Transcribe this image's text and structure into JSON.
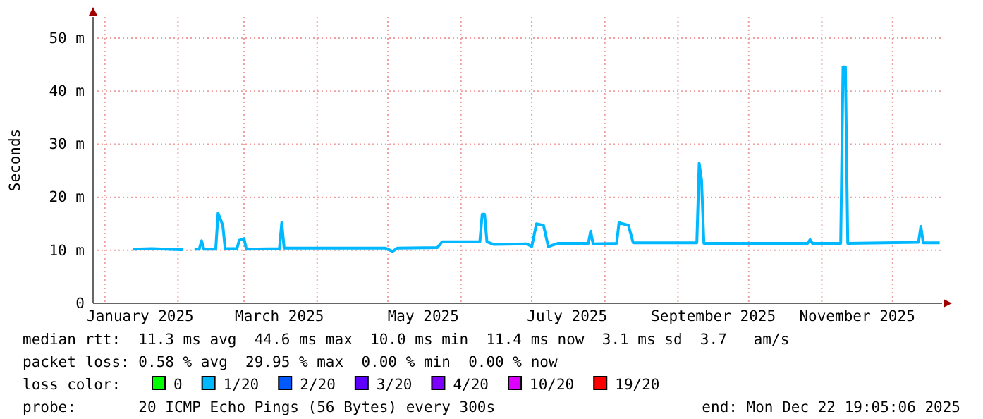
{
  "chart_data": {
    "type": "line",
    "ylabel": "Seconds",
    "xlim": [
      "2024-12-27",
      "2025-12-22"
    ],
    "xticks": [
      {
        "value": "2025-01-01",
        "label": null
      },
      {
        "value": "2025-01-16",
        "label": "January 2025"
      },
      {
        "value": "2025-02-01",
        "label": null
      },
      {
        "value": "2025-03-01",
        "label": null
      },
      {
        "value": "2025-03-16",
        "label": "March 2025"
      },
      {
        "value": "2025-04-01",
        "label": null
      },
      {
        "value": "2025-05-01",
        "label": null
      },
      {
        "value": "2025-05-16",
        "label": "May 2025"
      },
      {
        "value": "2025-06-01",
        "label": null
      },
      {
        "value": "2025-07-01",
        "label": null
      },
      {
        "value": "2025-07-16",
        "label": "July 2025"
      },
      {
        "value": "2025-08-01",
        "label": null
      },
      {
        "value": "2025-09-01",
        "label": null
      },
      {
        "value": "2025-09-16",
        "label": "September 2025"
      },
      {
        "value": "2025-10-01",
        "label": null
      },
      {
        "value": "2025-11-01",
        "label": null
      },
      {
        "value": "2025-11-16",
        "label": "November 2025"
      },
      {
        "value": "2025-12-01",
        "label": null
      }
    ],
    "ylim": [
      0,
      54
    ],
    "yticks": [
      0,
      {
        "value": 10,
        "label": "10 m"
      },
      {
        "value": 20,
        "label": "20 m"
      },
      {
        "value": 30,
        "label": "30 m"
      },
      {
        "value": 40,
        "label": "40 m"
      },
      {
        "value": 50,
        "label": "50 m"
      }
    ],
    "grid": true,
    "legend": "bottom",
    "marker": "none",
    "line_style": "solid",
    "series": [
      {
        "name": "0",
        "color": "#00ff00"
      },
      {
        "name": "1/20",
        "color": "#00b8ff",
        "x": [
          "2025-01-13",
          "2025-01-21",
          "2025-02-03",
          "2025-02-06",
          "2025-02-08",
          "2025-02-10",
          "2025-02-11",
          "2025-02-12",
          "2025-02-17",
          "2025-02-18",
          "2025-02-20",
          "2025-02-21",
          "2025-02-26",
          "2025-02-27",
          "2025-03-01",
          "2025-03-02",
          "2025-03-16",
          "2025-03-17",
          "2025-03-18",
          "2025-04-30",
          "2025-05-03",
          "2025-05-05",
          "2025-05-22",
          "2025-05-24",
          "2025-06-09",
          "2025-06-10",
          "2025-06-11",
          "2025-06-12",
          "2025-06-15",
          "2025-06-29",
          "2025-07-01",
          "2025-07-03",
          "2025-07-06",
          "2025-07-08",
          "2025-07-12",
          "2025-07-25",
          "2025-07-26",
          "2025-07-27",
          "2025-08-06",
          "2025-08-07",
          "2025-08-11",
          "2025-08-13",
          "2025-09-09",
          "2025-09-10",
          "2025-09-11",
          "2025-09-12",
          "2025-10-26",
          "2025-10-27",
          "2025-10-28",
          "2025-11-09",
          "2025-11-10",
          "2025-11-11",
          "2025-11-12",
          "2025-12-12",
          "2025-12-13",
          "2025-12-14",
          "2025-12-21"
        ],
        "values": [
          10.2,
          10.3,
          10.1,
          null,
          10.2,
          10.2,
          11.8,
          10.2,
          10.2,
          17.0,
          14.7,
          10.3,
          10.3,
          11.9,
          12.2,
          10.2,
          10.3,
          15.2,
          10.4,
          10.4,
          9.8,
          10.4,
          10.5,
          11.6,
          11.6,
          16.8,
          16.8,
          11.6,
          11.1,
          11.2,
          10.7,
          15.0,
          14.7,
          10.7,
          11.3,
          11.3,
          13.6,
          11.2,
          11.3,
          15.2,
          14.7,
          11.4,
          11.4,
          26.4,
          23.2,
          11.3,
          11.3,
          12.0,
          11.3,
          11.3,
          44.6,
          44.6,
          11.3,
          11.5,
          14.5,
          11.4,
          11.4
        ]
      },
      {
        "name": "2/20",
        "color": "#0059ff"
      },
      {
        "name": "3/20",
        "color": "#5e00ff"
      },
      {
        "name": "4/20",
        "color": "#7e00ff"
      },
      {
        "name": "10/20",
        "color": "#dd00ff"
      },
      {
        "name": "19/20",
        "color": "#ff0000"
      }
    ],
    "annotations": [
      "median rtt:  11.3 ms avg  44.6 ms max  10.0 ms min  11.4 ms now  3.1 ms sd  3.7   am/s",
      "packet loss: 0.58 % avg  29.95 % max  0.00 % min  0.00 % now",
      "loss color:",
      "probe:       20 ICMP Echo Pings (56 Bytes) every 300s",
      "end: Mon Dec 22 19:05:06 2025"
    ]
  }
}
